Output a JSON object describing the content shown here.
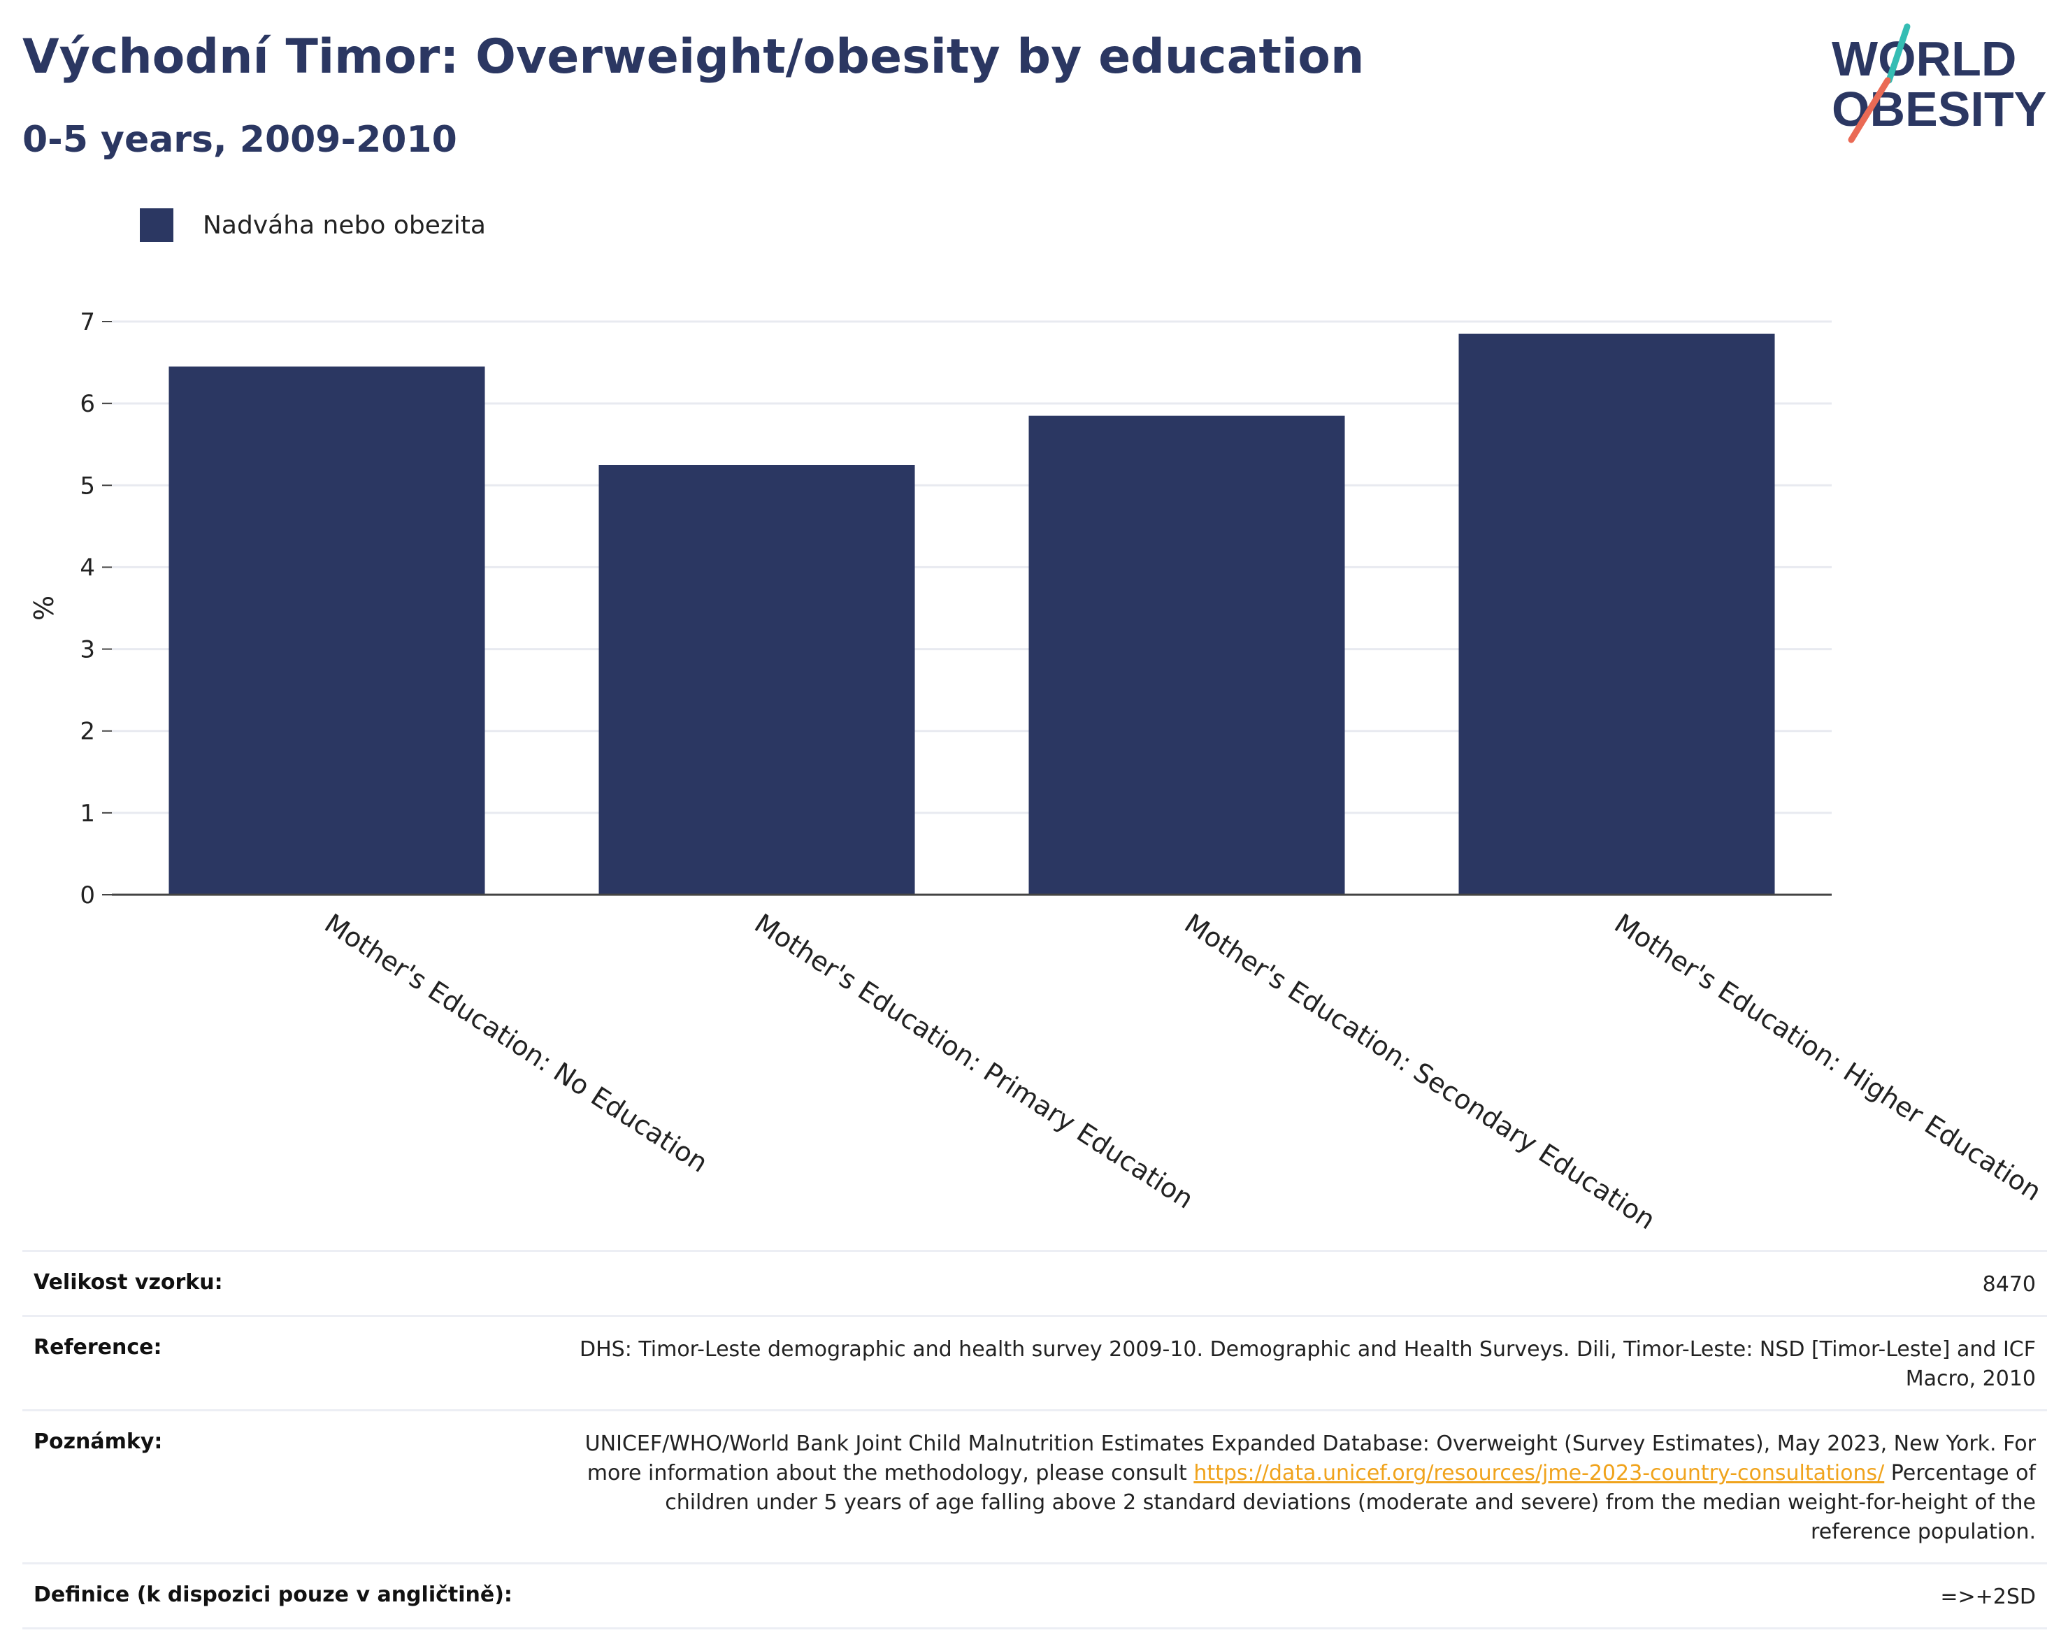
{
  "header": {
    "title": "Východní Timor: Overweight/obesity by education",
    "subtitle": "0-5 years, 2009-2010"
  },
  "logo": {
    "line1": "WORLD",
    "line2": "OBESITY"
  },
  "colors": {
    "bar": "#2b3762",
    "title": "#2b3762",
    "logo_teal": "#35bdb4",
    "logo_coral": "#ea6a55",
    "link": "#f0a31c"
  },
  "chart_data": {
    "type": "bar",
    "categories": [
      "Mother's Education: No Education",
      "Mother's Education: Primary Education",
      "Mother's Education: Secondary Education",
      "Mother's Education: Higher Education"
    ],
    "series": [
      {
        "name": "Nadváha nebo obezita",
        "values": [
          6.45,
          5.25,
          5.85,
          6.85
        ]
      }
    ],
    "ylabel": "%",
    "ylim": [
      0,
      7
    ],
    "yticks": [
      0,
      1,
      2,
      3,
      4,
      5,
      6,
      7
    ],
    "grid": true,
    "legend": "top-left"
  },
  "info": {
    "sample_label": "Velikost vzorku:",
    "sample_value": "8470",
    "reference_label": "Reference:",
    "reference_value": "DHS: Timor-Leste demographic and health survey 2009-10. Demographic and Health Surveys. Dili, Timor-Leste: NSD [Timor-Leste] and ICF Macro, 2010",
    "notes_label": "Poznámky:",
    "notes_pre": "UNICEF/WHO/World Bank Joint Child Malnutrition Estimates Expanded Database: Overweight (Survey Estimates), May 2023, New York. For more information about the methodology, please consult",
    "notes_link": "https://data.unicef.org/resources/jme-2023-country-consultations/",
    "notes_post": "Percentage of children under 5 years of age falling above 2 standard deviations (moderate and severe) from the median weight-for-height of the reference population.",
    "definition_label": "Definice (k dispozici pouze v angličtině):",
    "definition_value": "=>+2SD"
  }
}
